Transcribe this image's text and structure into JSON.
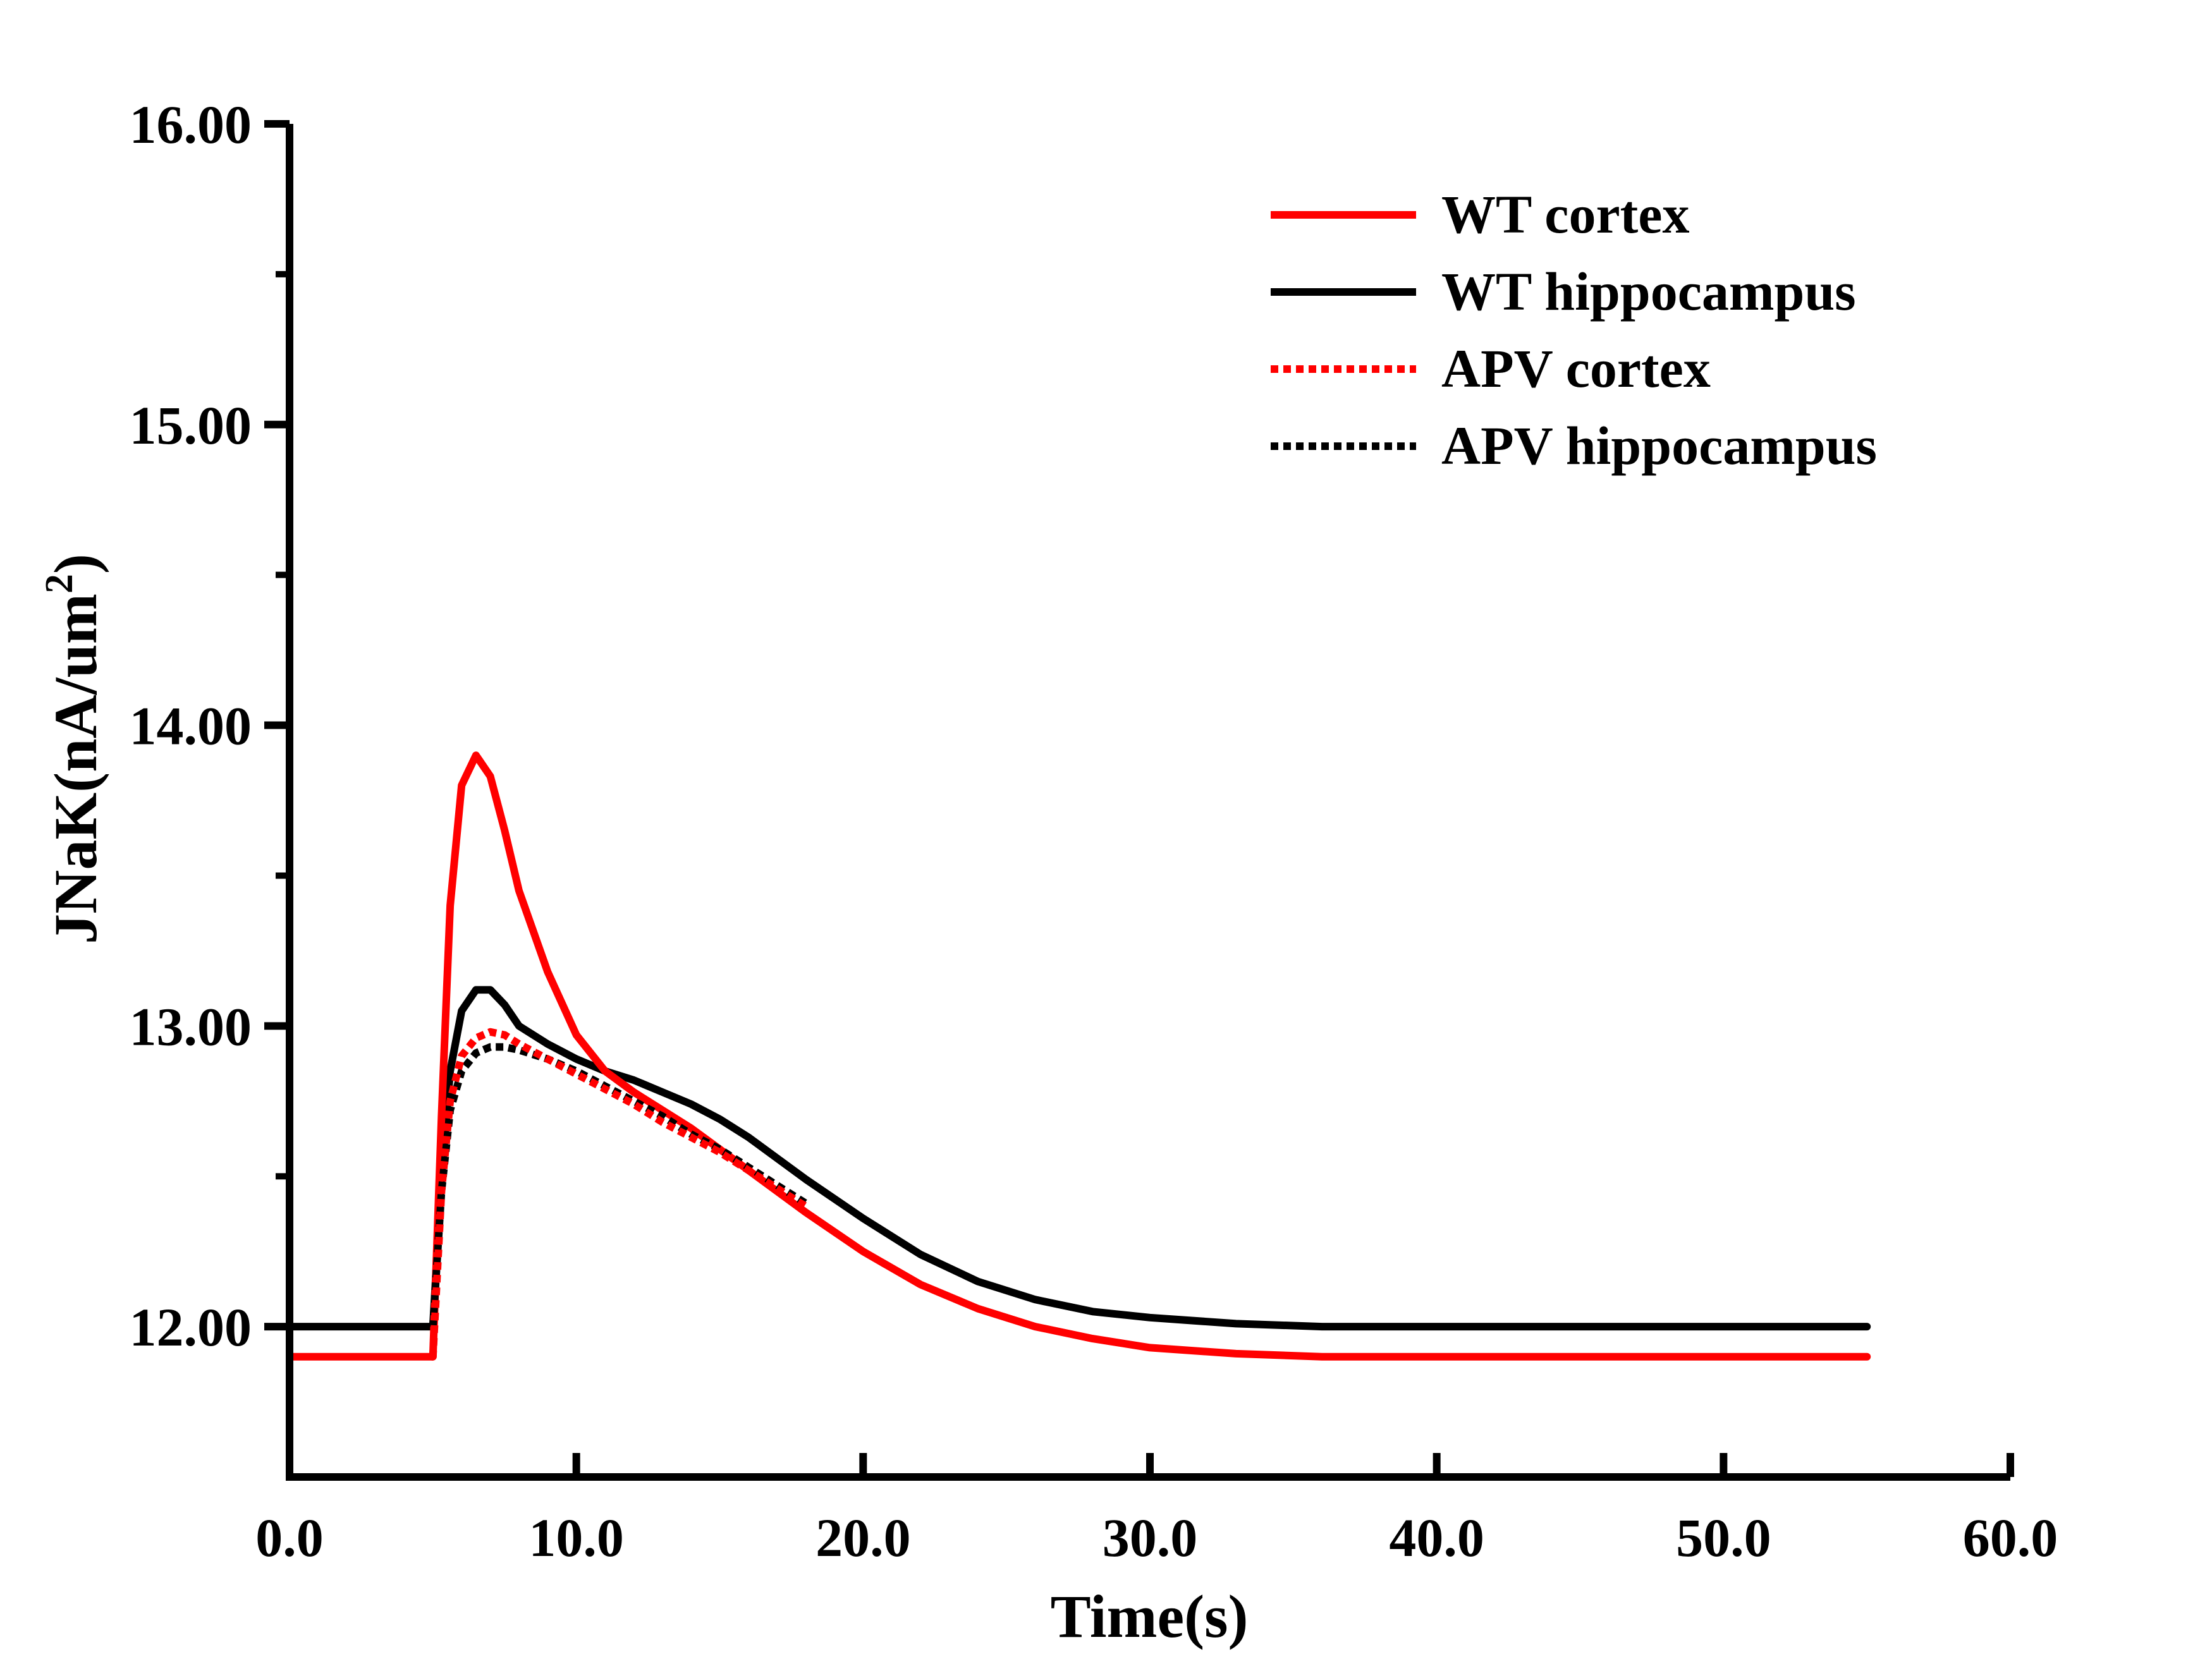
{
  "colors": {
    "red": "#ff0000",
    "black": "#000000"
  },
  "chart_data": {
    "type": "line",
    "xlabel": "Time(s)",
    "ylabel": "JNaK(nA/um",
    "ylabel_sup": "2",
    "ylabel_close": ")",
    "xlim": [
      0,
      60
    ],
    "ylim": [
      11.5,
      16
    ],
    "xticks": [
      0,
      10,
      20,
      30,
      40,
      50,
      60
    ],
    "xtick_labels": [
      "0.0",
      "10.0",
      "20.0",
      "30.0",
      "40.0",
      "50.0",
      "60.0"
    ],
    "yticks": [
      12,
      13,
      14,
      15,
      16
    ],
    "ytick_labels": [
      "12.00",
      "13.00",
      "14.00",
      "15.00",
      "16.00"
    ],
    "grid": false,
    "legend_position": "top-right",
    "series": [
      {
        "name": "WT cortex",
        "color": "#ff0000",
        "style": "solid",
        "x": [
          0,
          4.95,
          5.0,
          5.3,
          5.6,
          6.0,
          6.5,
          7.0,
          7.5,
          8.0,
          9.0,
          10.0,
          11.0,
          12.0,
          13.0,
          14.0,
          15.0,
          16.0,
          18.0,
          20.0,
          22.0,
          24.0,
          26.0,
          28.0,
          30.0,
          33.0,
          36.0,
          40.0,
          45.0,
          50.0,
          55.0
        ],
        "y": [
          11.9,
          11.9,
          11.9,
          12.7,
          13.4,
          13.8,
          13.9,
          13.83,
          13.65,
          13.45,
          13.18,
          12.97,
          12.85,
          12.78,
          12.72,
          12.66,
          12.59,
          12.52,
          12.38,
          12.25,
          12.14,
          12.06,
          12.0,
          11.96,
          11.93,
          11.91,
          11.9,
          11.9,
          11.9,
          11.9,
          11.9
        ]
      },
      {
        "name": "WT hippocampus",
        "color": "#000000",
        "style": "solid",
        "x": [
          0,
          4.95,
          5.0,
          5.3,
          5.6,
          6.0,
          6.5,
          7.0,
          7.5,
          8.0,
          9.0,
          10.0,
          11.0,
          12.0,
          13.0,
          14.0,
          15.0,
          16.0,
          18.0,
          20.0,
          22.0,
          24.0,
          26.0,
          28.0,
          30.0,
          33.0,
          36.0,
          40.0,
          45.0,
          50.0,
          55.0
        ],
        "y": [
          12.0,
          12.0,
          12.0,
          12.5,
          12.85,
          13.05,
          13.12,
          13.12,
          13.07,
          13.0,
          12.94,
          12.89,
          12.85,
          12.82,
          12.78,
          12.74,
          12.69,
          12.63,
          12.49,
          12.36,
          12.24,
          12.15,
          12.09,
          12.05,
          12.03,
          12.01,
          12.0,
          12.0,
          12.0,
          12.0,
          12.0
        ]
      },
      {
        "name": "APV cortex",
        "color": "#ff0000",
        "style": "dotted",
        "x": [
          4.95,
          5.0,
          5.3,
          5.6,
          6.0,
          6.5,
          7.0,
          7.5,
          8.0,
          9.0,
          10.0,
          11.0,
          12.0,
          13.0,
          14.0,
          15.0,
          16.0,
          17.0,
          18.0
        ],
        "y": [
          11.9,
          11.9,
          12.45,
          12.75,
          12.9,
          12.96,
          12.98,
          12.97,
          12.94,
          12.89,
          12.84,
          12.79,
          12.74,
          12.68,
          12.63,
          12.58,
          12.52,
          12.46,
          12.4
        ]
      },
      {
        "name": "APV hippocampus",
        "color": "#000000",
        "style": "dotted",
        "x": [
          4.95,
          5.0,
          5.3,
          5.6,
          6.0,
          6.5,
          7.0,
          7.5,
          8.0,
          9.0,
          10.0,
          11.0,
          12.0,
          13.0,
          14.0,
          15.0,
          16.0,
          17.0,
          18.0
        ],
        "y": [
          12.0,
          12.0,
          12.45,
          12.72,
          12.85,
          12.91,
          12.93,
          12.93,
          12.92,
          12.89,
          12.85,
          12.8,
          12.75,
          12.7,
          12.64,
          12.59,
          12.53,
          12.47,
          12.41
        ]
      }
    ]
  }
}
